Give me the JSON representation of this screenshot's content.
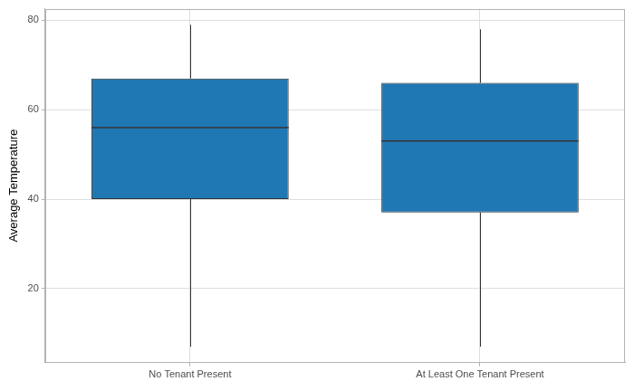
{
  "chart_data": {
    "type": "box",
    "y_label": "Average Temperature",
    "categories": [
      "No Tenant Present",
      "At Least One Tenant Present"
    ],
    "values": [
      {
        "min": 7,
        "q1": 40,
        "median": 56,
        "q3": 67,
        "max": 79
      },
      {
        "min": 7,
        "q1": 37,
        "median": 53,
        "q3": 66,
        "max": 78
      }
    ],
    "color": "#1f77b4",
    "ylim": [
      3.4,
      82.6
    ],
    "yticks": [
      20,
      40,
      60,
      80
    ],
    "grid": true
  }
}
